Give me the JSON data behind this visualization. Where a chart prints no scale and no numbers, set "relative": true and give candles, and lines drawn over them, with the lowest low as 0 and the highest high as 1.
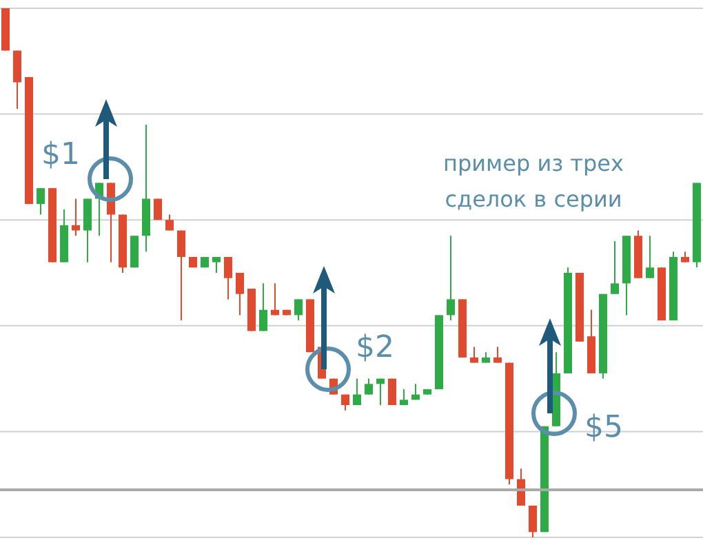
{
  "chart_data": {
    "type": "candlestick",
    "relative": true,
    "grid": "y",
    "categories": [
      null,
      null,
      null,
      null,
      null,
      null,
      null,
      null,
      null,
      null,
      null,
      null,
      null,
      null,
      null,
      null,
      null,
      null,
      null,
      null,
      null,
      null,
      null,
      null,
      null,
      null,
      null,
      null,
      null,
      null,
      null,
      null,
      null,
      null,
      null,
      null,
      null,
      null,
      null,
      null,
      null,
      null,
      null,
      null,
      null,
      null,
      null,
      null,
      null,
      null,
      null,
      null,
      null,
      null,
      null,
      null,
      null,
      null,
      null,
      null
    ],
    "ohlc": [
      [
        1.0,
        1.0,
        0.92,
        0.92
      ],
      [
        0.92,
        0.92,
        0.81,
        0.86
      ],
      [
        0.87,
        0.87,
        0.63,
        0.63
      ],
      [
        0.63,
        0.66,
        0.61,
        0.66
      ],
      [
        0.66,
        0.66,
        0.52,
        0.52
      ],
      [
        0.52,
        0.62,
        0.52,
        0.59
      ],
      [
        0.59,
        0.64,
        0.57,
        0.58
      ],
      [
        0.58,
        0.64,
        0.52,
        0.64
      ],
      [
        0.64,
        0.67,
        0.57,
        0.67
      ],
      [
        0.67,
        0.67,
        0.52,
        0.61
      ],
      [
        0.61,
        0.61,
        0.5,
        0.51
      ],
      [
        0.51,
        0.57,
        0.51,
        0.57
      ],
      [
        0.57,
        0.78,
        0.54,
        0.64
      ],
      [
        0.64,
        0.64,
        0.6,
        0.6
      ],
      [
        0.6,
        0.61,
        0.58,
        0.58
      ],
      [
        0.58,
        0.58,
        0.41,
        0.53
      ],
      [
        0.53,
        0.53,
        0.51,
        0.51
      ],
      [
        0.51,
        0.53,
        0.51,
        0.53
      ],
      [
        0.52,
        0.53,
        0.5,
        0.53
      ],
      [
        0.53,
        0.53,
        0.45,
        0.49
      ],
      [
        0.5,
        0.5,
        0.42,
        0.46
      ],
      [
        0.47,
        0.47,
        0.39,
        0.39
      ],
      [
        0.39,
        0.48,
        0.39,
        0.43
      ],
      [
        0.43,
        0.48,
        0.42,
        0.42
      ],
      [
        0.43,
        0.43,
        0.42,
        0.42
      ],
      [
        0.42,
        0.45,
        0.41,
        0.45
      ],
      [
        0.45,
        0.45,
        0.35,
        0.35
      ],
      [
        0.36,
        0.36,
        0.3,
        0.3
      ],
      [
        0.3,
        0.3,
        0.27,
        0.27
      ],
      [
        0.27,
        0.27,
        0.24,
        0.25
      ],
      [
        0.25,
        0.3,
        0.25,
        0.27
      ],
      [
        0.27,
        0.3,
        0.27,
        0.29
      ],
      [
        0.29,
        0.3,
        0.25,
        0.3
      ],
      [
        0.3,
        0.3,
        0.25,
        0.25
      ],
      [
        0.25,
        0.28,
        0.25,
        0.26
      ],
      [
        0.26,
        0.29,
        0.26,
        0.27
      ],
      [
        0.27,
        0.28,
        0.27,
        0.28
      ],
      [
        0.28,
        0.42,
        0.28,
        0.42
      ],
      [
        0.42,
        0.57,
        0.41,
        0.45
      ],
      [
        0.45,
        0.45,
        0.34,
        0.34
      ],
      [
        0.34,
        0.36,
        0.33,
        0.33
      ],
      [
        0.33,
        0.35,
        0.33,
        0.34
      ],
      [
        0.34,
        0.36,
        0.33,
        0.33
      ],
      [
        0.33,
        0.33,
        0.1,
        0.11
      ],
      [
        0.11,
        0.13,
        0.06,
        0.06
      ],
      [
        0.06,
        0.06,
        0.0,
        0.01
      ],
      [
        0.01,
        0.21,
        0.01,
        0.21
      ],
      [
        0.21,
        0.35,
        0.21,
        0.31
      ],
      [
        0.31,
        0.51,
        0.31,
        0.5
      ],
      [
        0.5,
        0.5,
        0.37,
        0.37
      ],
      [
        0.38,
        0.43,
        0.31,
        0.31
      ],
      [
        0.31,
        0.46,
        0.3,
        0.46
      ],
      [
        0.46,
        0.56,
        0.46,
        0.48
      ],
      [
        0.48,
        0.57,
        0.42,
        0.57
      ],
      [
        0.57,
        0.58,
        0.49,
        0.49
      ],
      [
        0.49,
        0.57,
        0.49,
        0.51
      ],
      [
        0.51,
        0.51,
        0.41,
        0.41
      ],
      [
        0.41,
        0.54,
        0.41,
        0.53
      ],
      [
        0.53,
        0.54,
        0.52,
        0.52
      ],
      [
        0.52,
        0.67,
        0.51,
        0.67
      ]
    ],
    "colors": [
      "#e04b2f",
      "#e04b2f",
      "#e04b2f",
      "#2eaa47",
      "#e04b2f",
      "#2eaa47",
      "#e04b2f",
      "#2eaa47",
      "#2eaa47",
      "#e04b2f",
      "#e04b2f",
      "#2eaa47",
      "#2eaa47",
      "#e04b2f",
      "#e04b2f",
      "#e04b2f",
      "#e04b2f",
      "#2eaa47",
      "#2eaa47",
      "#e04b2f",
      "#e04b2f",
      "#e04b2f",
      "#2eaa47",
      "#e04b2f",
      "#e04b2f",
      "#2eaa47",
      "#e04b2f",
      "#e04b2f",
      "#e04b2f",
      "#e04b2f",
      "#2eaa47",
      "#2eaa47",
      "#2eaa47",
      "#e04b2f",
      "#2eaa47",
      "#2eaa47",
      "#2eaa47",
      "#2eaa47",
      "#2eaa47",
      "#e04b2f",
      "#e04b2f",
      "#2eaa47",
      "#e04b2f",
      "#e04b2f",
      "#e04b2f",
      "#e04b2f",
      "#2eaa47",
      "#2eaa47",
      "#2eaa47",
      "#e04b2f",
      "#e04b2f",
      "#2eaa47",
      "#2eaa47",
      "#2eaa47",
      "#e04b2f",
      "#2eaa47",
      "#e04b2f",
      "#2eaa47",
      "#e04b2f",
      "#2eaa47"
    ],
    "ref_lines": [
      {
        "axis": "y",
        "value": 0.09,
        "color": "#aaaaaa"
      }
    ],
    "annotations": [
      "$1",
      "$2",
      "$5",
      "пример из трех сделок в серии"
    ]
  }
}
